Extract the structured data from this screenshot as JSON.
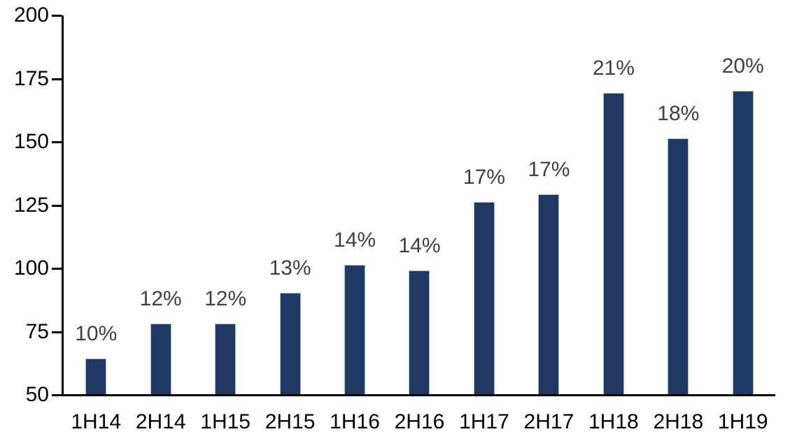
{
  "chart_data": {
    "type": "bar",
    "title": "",
    "xlabel": "",
    "ylabel": "",
    "categories": [
      "1H14",
      "2H14",
      "1H15",
      "2H15",
      "1H16",
      "2H16",
      "1H17",
      "2H17",
      "1H18",
      "2H18",
      "1H19"
    ],
    "values": [
      64,
      78,
      78,
      90,
      101,
      99,
      126,
      129,
      169,
      151,
      170
    ],
    "bar_labels": [
      "10%",
      "12%",
      "12%",
      "13%",
      "14%",
      "14%",
      "17%",
      "17%",
      "21%",
      "18%",
      "20%"
    ],
    "ylim": [
      50,
      200
    ],
    "yticks": [
      50,
      75,
      100,
      125,
      150,
      175,
      200
    ],
    "grid": false,
    "legend_position": "none",
    "bar_color": "#1f3864",
    "bar_border_color": "#aab7cd",
    "data_label_color": "#404040",
    "axis_color": "#000000",
    "background_color": "#ffffff"
  }
}
